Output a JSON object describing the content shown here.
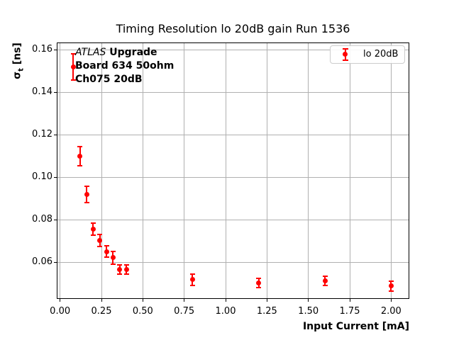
{
  "chart": {
    "title": "Timing Resolution lo 20dB gain Run 1536",
    "xlabel": "Input Current [mA]",
    "ylabel": {
      "symbol": "σ",
      "subscript": "t",
      "unit": " [ns]"
    },
    "legend_label": "lo 20dB",
    "annotation": {
      "line1_italic": "ATLAS",
      "line1_bold": " Upgrade",
      "line2": "Board 634 50ohm",
      "line3": "Ch075 20dB"
    }
  },
  "chart_data": {
    "type": "scatter",
    "title": "Timing Resolution lo 20dB gain Run 1536",
    "xlabel": "Input Current [mA]",
    "ylabel": "sigma_t [ns]",
    "grid": true,
    "legend_position": "upper right",
    "xlim": [
      -0.02,
      2.11
    ],
    "ylim": [
      0.0427,
      0.1635
    ],
    "xticks": {
      "values": [
        0.0,
        0.25,
        0.5,
        0.75,
        1.0,
        1.25,
        1.5,
        1.75,
        2.0
      ],
      "labels": [
        "0.00",
        "0.25",
        "0.50",
        "0.75",
        "1.00",
        "1.25",
        "1.50",
        "1.75",
        "2.00"
      ]
    },
    "yticks": {
      "values": [
        0.06,
        0.08,
        0.1,
        0.12,
        0.14,
        0.16
      ],
      "labels": [
        "0.06",
        "0.08",
        "0.10",
        "0.12",
        "0.14",
        "0.16"
      ]
    },
    "series": [
      {
        "name": "lo 20dB",
        "color": "#ff0000",
        "marker": "circle-with-errorbars",
        "x": [
          0.08,
          0.12,
          0.16,
          0.2,
          0.24,
          0.28,
          0.32,
          0.36,
          0.4,
          0.8,
          1.2,
          1.6,
          2.0
        ],
        "y": [
          0.152,
          0.1098,
          0.0919,
          0.0755,
          0.0702,
          0.065,
          0.0622,
          0.0565,
          0.0565,
          0.0518,
          0.0501,
          0.0512,
          0.0488
        ],
        "yerr": [
          0.0063,
          0.0045,
          0.0037,
          0.0029,
          0.0028,
          0.0027,
          0.003,
          0.0021,
          0.0021,
          0.0026,
          0.0022,
          0.0023,
          0.0023
        ]
      }
    ],
    "colors": {
      "series": "#ff0000",
      "grid": "#b0b0b0",
      "spines": "#000000",
      "background": "#ffffff",
      "text": "#000000"
    }
  }
}
